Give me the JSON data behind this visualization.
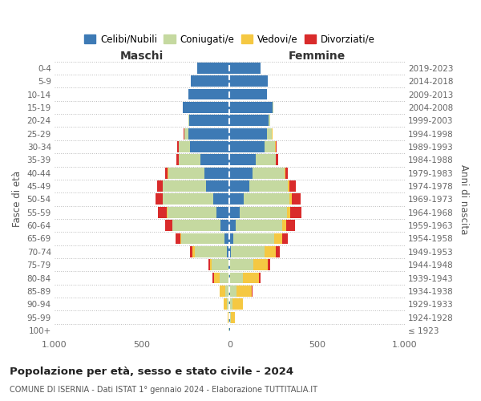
{
  "age_groups": [
    "0-4",
    "5-9",
    "10-14",
    "15-19",
    "20-24",
    "25-29",
    "30-34",
    "35-39",
    "40-44",
    "45-49",
    "50-54",
    "55-59",
    "60-64",
    "65-69",
    "70-74",
    "75-79",
    "80-84",
    "85-89",
    "90-94",
    "95-99",
    "100+"
  ],
  "birth_years": [
    "2019-2023",
    "2014-2018",
    "2009-2013",
    "2004-2008",
    "1999-2003",
    "1994-1998",
    "1989-1993",
    "1984-1988",
    "1979-1983",
    "1974-1978",
    "1969-1973",
    "1964-1968",
    "1959-1963",
    "1954-1958",
    "1949-1953",
    "1944-1948",
    "1939-1943",
    "1934-1938",
    "1929-1933",
    "1924-1928",
    "≤ 1923"
  ],
  "colors": {
    "celibi": "#3d7ab5",
    "coniugati": "#c5d9a0",
    "vedovi": "#f5c842",
    "divorziati": "#d92b2b"
  },
  "legend_labels": [
    "Celibi/Nubili",
    "Coniugati/e",
    "Vedovi/e",
    "Divorziati/e"
  ],
  "maschi_celibi": [
    185,
    220,
    235,
    265,
    230,
    235,
    225,
    165,
    145,
    135,
    95,
    75,
    50,
    30,
    15,
    5,
    3,
    3,
    3,
    2,
    2
  ],
  "maschi_coniugati": [
    0,
    0,
    0,
    2,
    7,
    22,
    65,
    125,
    205,
    245,
    285,
    280,
    275,
    245,
    185,
    95,
    55,
    22,
    12,
    5,
    2
  ],
  "maschi_vedovi": [
    0,
    0,
    0,
    0,
    0,
    2,
    2,
    2,
    2,
    3,
    3,
    3,
    3,
    6,
    10,
    12,
    30,
    30,
    20,
    5,
    0
  ],
  "maschi_divorziati": [
    0,
    0,
    0,
    0,
    0,
    2,
    5,
    12,
    18,
    32,
    42,
    52,
    38,
    28,
    18,
    8,
    8,
    3,
    0,
    0,
    0
  ],
  "femmine_nubili": [
    178,
    218,
    215,
    248,
    225,
    215,
    202,
    152,
    132,
    112,
    82,
    58,
    37,
    22,
    10,
    3,
    3,
    3,
    3,
    2,
    2
  ],
  "femmine_coniugate": [
    0,
    0,
    0,
    2,
    7,
    28,
    58,
    112,
    182,
    222,
    262,
    272,
    262,
    235,
    192,
    135,
    72,
    38,
    15,
    5,
    0
  ],
  "femmine_vedove": [
    0,
    0,
    0,
    0,
    2,
    2,
    2,
    2,
    3,
    7,
    12,
    17,
    27,
    42,
    62,
    82,
    92,
    88,
    58,
    22,
    3
  ],
  "femmine_divorziate": [
    0,
    0,
    0,
    0,
    0,
    2,
    5,
    12,
    17,
    37,
    52,
    62,
    47,
    32,
    22,
    12,
    8,
    3,
    0,
    0,
    0
  ],
  "title": "Popolazione per età, sesso e stato civile - 2024",
  "subtitle": "COMUNE DI ISERNIA - Dati ISTAT 1° gennaio 2024 - Elaborazione TUTTITALIA.IT",
  "label_maschi": "Maschi",
  "label_femmine": "Femmine",
  "ylabel_left": "Fasce di età",
  "ylabel_right": "Anni di nascita",
  "xlim": 1000,
  "bg_color": "#ffffff",
  "grid_color": "#cccccc"
}
